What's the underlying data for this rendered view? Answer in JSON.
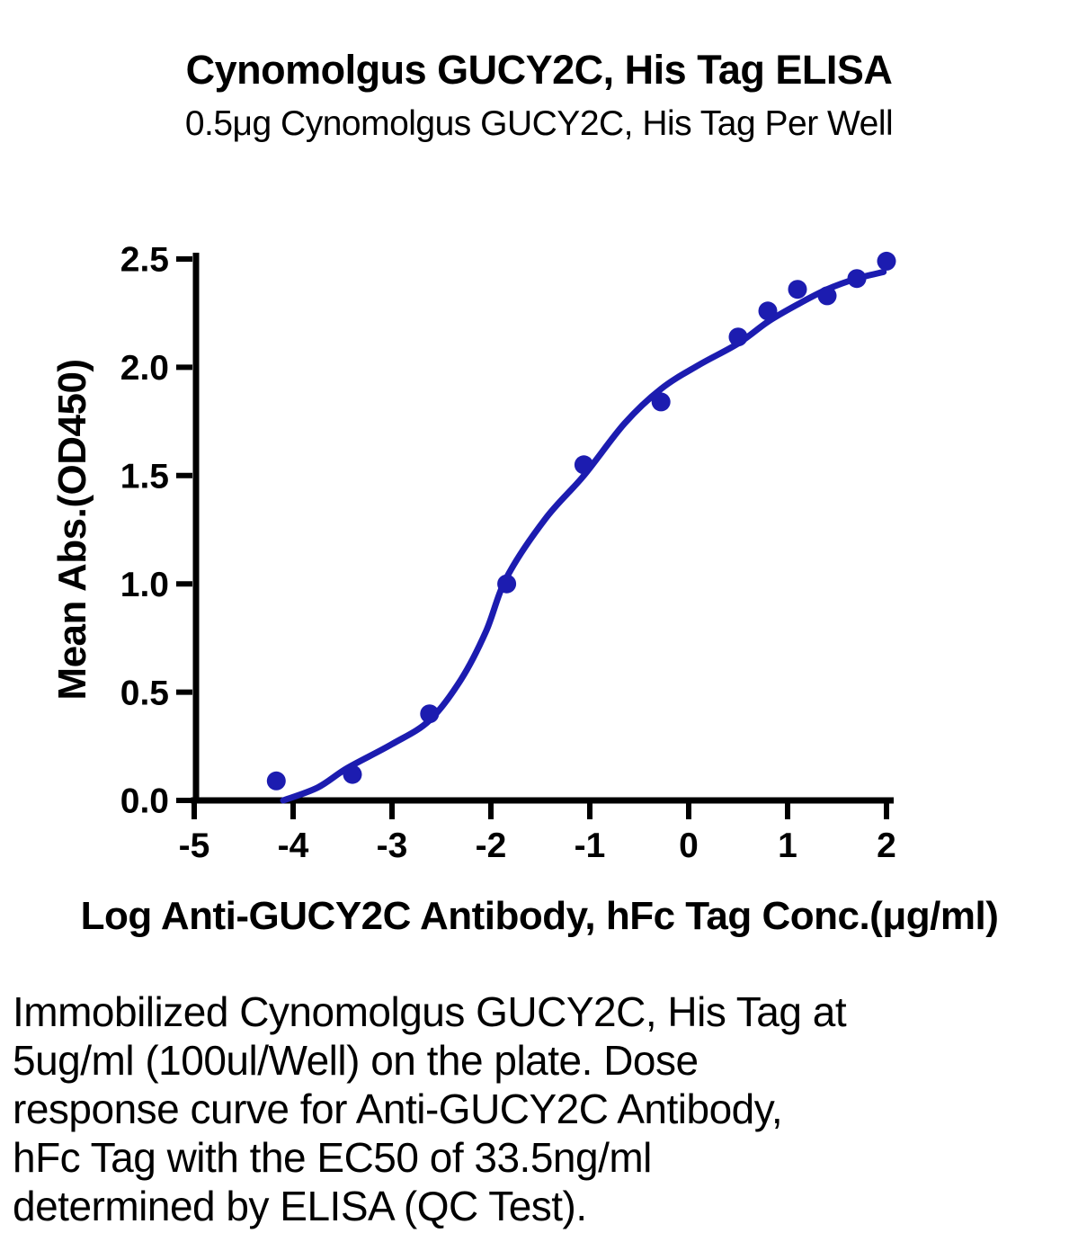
{
  "chart_data": {
    "type": "scatter",
    "title": "Cynomolgus GUCY2C, His Tag ELISA",
    "subtitle": "0.5μg Cynomolgus GUCY2C, His Tag Per Well",
    "xlabel": "Log Anti-GUCY2C Antibody, hFc Tag Conc.(μg/ml)",
    "ylabel": "Mean Abs.(OD450)",
    "xlim": [
      -5,
      2
    ],
    "ylim": [
      0,
      2.5
    ],
    "grid": false,
    "legend": "none",
    "x_ticks": [
      "-5",
      "-4",
      "-3",
      "-2",
      "-1",
      "0",
      "1",
      "2"
    ],
    "y_ticks": [
      "0.0",
      "0.5",
      "1.0",
      "1.5",
      "2.0",
      "2.5"
    ],
    "series": [
      {
        "name": "Anti-GUCY2C Antibody, hFc Tag",
        "marker": "circle",
        "x": [
          -4.17,
          -3.4,
          -2.62,
          -1.84,
          -1.06,
          -0.28,
          0.5,
          0.8,
          1.1,
          1.4,
          1.7,
          2.0
        ],
        "y": [
          0.09,
          0.12,
          0.4,
          1.0,
          1.55,
          1.84,
          2.14,
          2.26,
          2.36,
          2.33,
          2.41,
          2.49
        ]
      }
    ],
    "fit_curve": {
      "type": "4PL dose-response fit",
      "ec50_label": "EC50 of 33.5ng/ml",
      "anchors": [
        [
          -4.1,
          0.0
        ],
        [
          -3.75,
          0.06
        ],
        [
          -3.45,
          0.15
        ],
        [
          -3.0,
          0.26
        ],
        [
          -2.62,
          0.37
        ],
        [
          -2.3,
          0.56
        ],
        [
          -2.05,
          0.78
        ],
        [
          -1.84,
          1.03
        ],
        [
          -1.45,
          1.3
        ],
        [
          -1.06,
          1.5
        ],
        [
          -0.65,
          1.74
        ],
        [
          -0.28,
          1.9
        ],
        [
          0.1,
          2.01
        ],
        [
          0.5,
          2.11
        ],
        [
          0.8,
          2.21
        ],
        [
          1.1,
          2.29
        ],
        [
          1.4,
          2.36
        ],
        [
          1.7,
          2.41
        ],
        [
          1.97,
          2.44
        ]
      ]
    },
    "colors": {
      "curve": "#1C1CB0",
      "points": "#1C1CB0",
      "axis": "#000000"
    }
  },
  "caption": {
    "lines": [
      "Immobilized Cynomolgus GUCY2C, His Tag at",
      "5ug/ml (100ul/Well) on the plate. Dose",
      "response curve for Anti-GUCY2C Antibody,",
      "hFc Tag with the EC50 of 33.5ng/ml",
      "determined by ELISA (QC Test)."
    ]
  }
}
